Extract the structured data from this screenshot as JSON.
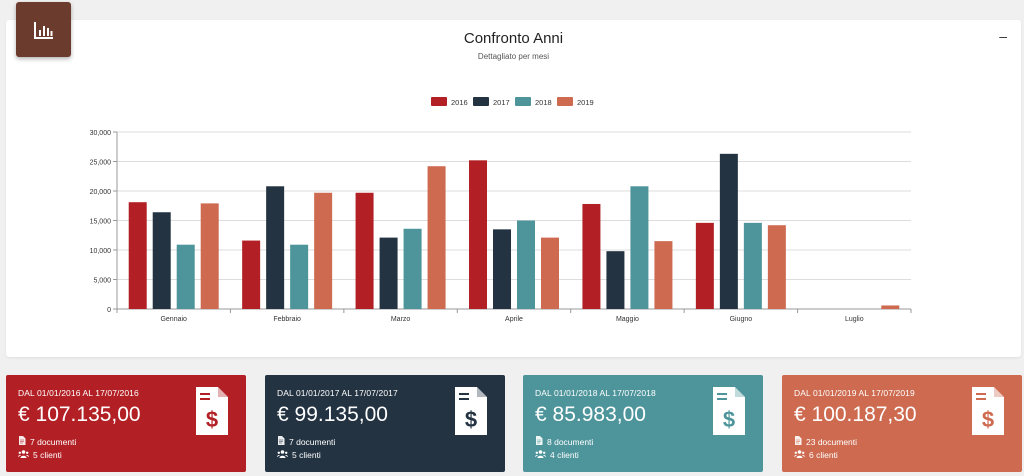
{
  "chart_card": {
    "title": "Confronto Anni",
    "subtitle": "Dettagliato per mesi",
    "collapse_label": "–"
  },
  "chart_data": {
    "type": "bar",
    "title": "Confronto Anni",
    "subtitle": "Dettagliato per mesi",
    "categories": [
      "Gennaio",
      "Febbraio",
      "Marzo",
      "Aprile",
      "Maggio",
      "Giugno",
      "Luglio"
    ],
    "series": [
      {
        "name": "2016",
        "color": "#b22025",
        "values": [
          18100,
          11600,
          19700,
          25200,
          17800,
          14600,
          0
        ]
      },
      {
        "name": "2017",
        "color": "#233342",
        "values": [
          16400,
          20800,
          12100,
          13500,
          9800,
          26300,
          0
        ]
      },
      {
        "name": "2018",
        "color": "#4e959b",
        "values": [
          10900,
          10900,
          13600,
          15000,
          20800,
          14600,
          0
        ]
      },
      {
        "name": "2019",
        "color": "#cd6a4f",
        "values": [
          17900,
          19700,
          24200,
          12100,
          11500,
          14200,
          600
        ]
      }
    ],
    "y_ticks": [
      "0",
      "5,000",
      "10,000",
      "15,000",
      "20,000",
      "25,000",
      "30,000"
    ],
    "ylim": [
      0,
      30000
    ],
    "grid": true,
    "legend_position": "top-center"
  },
  "stats": [
    {
      "range": "DAL 01/01/2016 AL 17/07/2016",
      "amount": "€ 107.135,00",
      "documents": "7 documenti",
      "clients": "5 clienti",
      "color": "#b22025"
    },
    {
      "range": "DAL 01/01/2017 AL 17/07/2017",
      "amount": "€ 99.135,00",
      "documents": "7 documenti",
      "clients": "5 clienti",
      "color": "#233342"
    },
    {
      "range": "DAL 01/01/2018 AL 17/07/2018",
      "amount": "€ 85.983,00",
      "documents": "8 documenti",
      "clients": "4 clienti",
      "color": "#4e959b"
    },
    {
      "range": "DAL 01/01/2019 AL 17/07/2019",
      "amount": "€ 100.187,30",
      "documents": "23 documenti",
      "clients": "6 clienti",
      "color": "#cd6a4f"
    }
  ],
  "icons": {
    "badge": "bar-chart-icon",
    "stat": "invoice-dollar-icon",
    "documents": "file-icon",
    "clients": "users-icon"
  }
}
